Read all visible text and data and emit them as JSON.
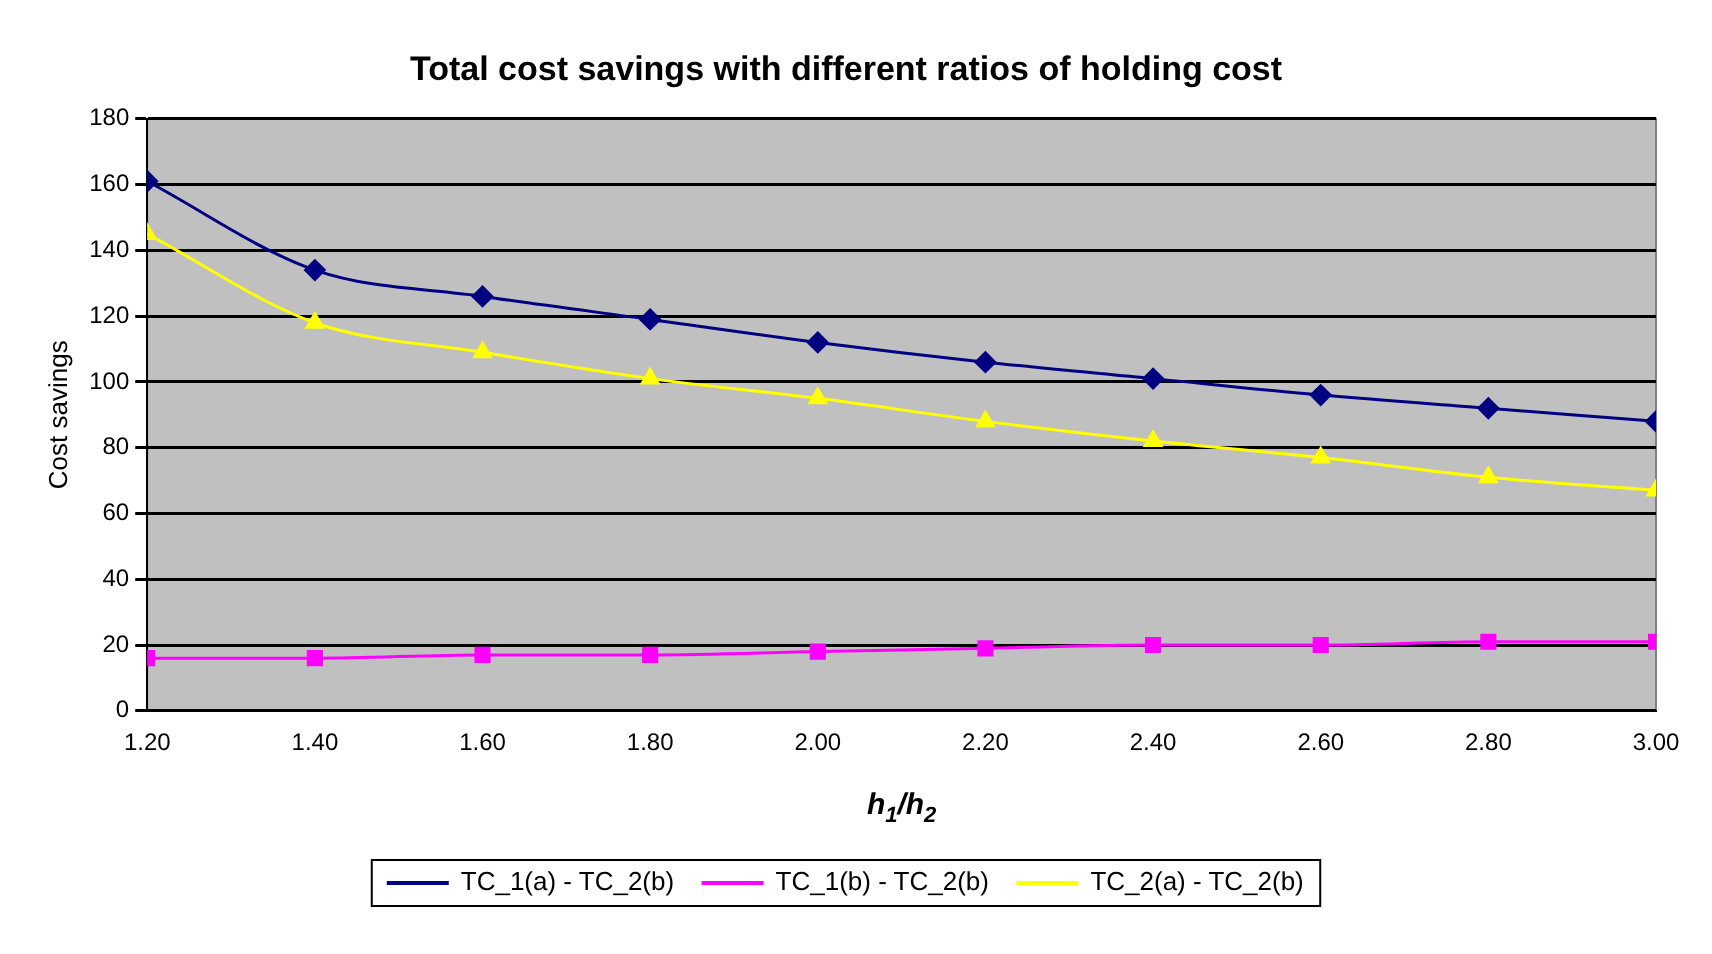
{
  "chart_data": {
    "type": "line",
    "title": "Total cost savings with different ratios of holding cost",
    "xlabel": "h$_{1}$/h$_{2}$",
    "ylabel": "Cost savings",
    "x": [
      1.2,
      1.4,
      1.6,
      1.8,
      2.0,
      2.2,
      2.4,
      2.6,
      2.8,
      3.0
    ],
    "xlim": [
      1.2,
      3.0
    ],
    "xticks": [
      {
        "value": 1.2,
        "label": "1.20"
      },
      {
        "value": 1.4,
        "label": "1.40"
      },
      {
        "value": 1.6,
        "label": "1.60"
      },
      {
        "value": 1.8,
        "label": "1.80"
      },
      {
        "value": 2.0,
        "label": "2.00"
      },
      {
        "value": 2.2,
        "label": "2.20"
      },
      {
        "value": 2.4,
        "label": "2.40"
      },
      {
        "value": 2.6,
        "label": "2.60"
      },
      {
        "value": 2.8,
        "label": "2.80"
      },
      {
        "value": 3.0,
        "label": "3.00"
      }
    ],
    "ylim": [
      0,
      180
    ],
    "yticks": [
      0,
      20,
      40,
      60,
      80,
      100,
      120,
      140,
      160,
      180
    ],
    "grid": "y",
    "legend": "bottom",
    "series": [
      {
        "name": "TC_1(a) - TC_2(b)",
        "color": "#000080",
        "marker": "diamond",
        "values": [
          161,
          134,
          126,
          119,
          112,
          106,
          101,
          96,
          92,
          88
        ]
      },
      {
        "name": "TC_1(b) - TC_2(b)",
        "color": "#ff00ff",
        "marker": "square",
        "values": [
          16,
          16,
          17,
          17,
          18,
          19,
          20,
          20,
          21,
          21
        ]
      },
      {
        "name": "TC_2(a) - TC_2(b)",
        "color": "#ffff00",
        "marker": "triangle",
        "values": [
          145,
          118,
          109,
          101,
          95,
          88,
          82,
          77,
          71,
          67
        ]
      }
    ]
  }
}
